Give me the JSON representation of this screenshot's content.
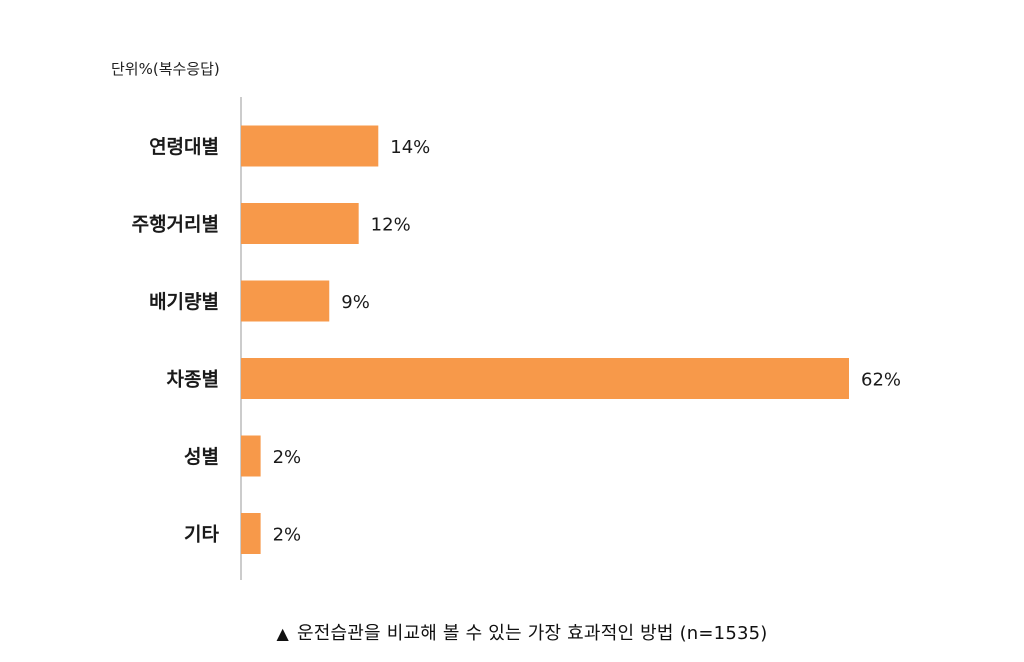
{
  "colors": {
    "bar": "#F7994A",
    "axis": "#aaaaaa",
    "text": "#1a1a1a"
  },
  "unit_label": "단위%(복수응답)",
  "caption": {
    "marker": "▲",
    "text": "운전습관을 비교해 볼 수 있는 가장 효과적인 방법 (n=1535)"
  },
  "chart_data": {
    "type": "bar",
    "orientation": "horizontal",
    "title": "",
    "xlabel": "",
    "ylabel": "",
    "categories": [
      "연령대별",
      "주행거리별",
      "배기량별",
      "차종별",
      "성별",
      "기타"
    ],
    "values": [
      14,
      12,
      9,
      62,
      2,
      2
    ],
    "value_labels": [
      "14%",
      "12%",
      "9%",
      "62%",
      "2%",
      "2%"
    ],
    "xlim": [
      0,
      62
    ],
    "grid": false,
    "legend": "none"
  }
}
